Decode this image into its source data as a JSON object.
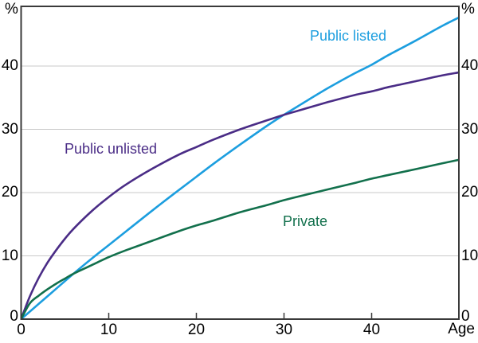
{
  "figure": {
    "unit_left": "%",
    "unit_right": "%",
    "x_axis_label": "Age"
  },
  "chart_data": {
    "type": "line",
    "title": "",
    "xlabel": "Age",
    "ylabel": "%",
    "xlim": [
      0,
      50
    ],
    "ylim": [
      0,
      50
    ],
    "x_ticks": [
      0,
      10,
      20,
      30,
      40
    ],
    "y_ticks": [
      0,
      10,
      20,
      30,
      40
    ],
    "grid": "horizontal",
    "legend_position": "inline-labels",
    "frame_color": "#3a3a3a",
    "gridline_color": "#c9c9c9",
    "series": [
      {
        "name": "Public listed",
        "color": "#1c9edf",
        "points": [
          [
            0,
            0
          ],
          [
            2,
            2.4
          ],
          [
            4,
            4.8
          ],
          [
            6,
            7.2
          ],
          [
            8,
            9.5
          ],
          [
            10,
            11.7
          ],
          [
            12,
            13.9
          ],
          [
            15,
            17.2
          ],
          [
            18,
            20.4
          ],
          [
            20,
            22.5
          ],
          [
            22,
            24.6
          ],
          [
            25,
            27.6
          ],
          [
            28,
            30.5
          ],
          [
            30,
            32.3
          ],
          [
            32,
            34.0
          ],
          [
            35,
            36.5
          ],
          [
            38,
            38.8
          ],
          [
            40,
            40.2
          ],
          [
            42,
            41.8
          ],
          [
            45,
            44.0
          ],
          [
            48,
            46.3
          ],
          [
            50,
            47.7
          ]
        ]
      },
      {
        "name": "Public unlisted",
        "color": "#4a2c86",
        "points": [
          [
            0,
            0
          ],
          [
            1,
            3.6
          ],
          [
            2,
            6.5
          ],
          [
            3,
            8.9
          ],
          [
            4,
            10.9
          ],
          [
            5,
            12.7
          ],
          [
            6,
            14.3
          ],
          [
            8,
            17.0
          ],
          [
            10,
            19.3
          ],
          [
            12,
            21.3
          ],
          [
            15,
            23.8
          ],
          [
            18,
            26.0
          ],
          [
            20,
            27.2
          ],
          [
            22,
            28.4
          ],
          [
            25,
            30.0
          ],
          [
            28,
            31.4
          ],
          [
            30,
            32.3
          ],
          [
            32,
            33.1
          ],
          [
            35,
            34.3
          ],
          [
            38,
            35.4
          ],
          [
            40,
            36.0
          ],
          [
            42,
            36.7
          ],
          [
            45,
            37.6
          ],
          [
            48,
            38.5
          ],
          [
            50,
            39.0
          ]
        ]
      },
      {
        "name": "Private",
        "color": "#12704c",
        "points": [
          [
            0,
            0
          ],
          [
            1,
            2.5
          ],
          [
            2,
            3.7
          ],
          [
            3,
            4.7
          ],
          [
            4,
            5.6
          ],
          [
            5,
            6.4
          ],
          [
            6,
            7.2
          ],
          [
            8,
            8.5
          ],
          [
            10,
            9.8
          ],
          [
            12,
            10.9
          ],
          [
            15,
            12.4
          ],
          [
            18,
            13.9
          ],
          [
            20,
            14.8
          ],
          [
            22,
            15.6
          ],
          [
            25,
            16.9
          ],
          [
            28,
            18.0
          ],
          [
            30,
            18.8
          ],
          [
            32,
            19.5
          ],
          [
            35,
            20.5
          ],
          [
            38,
            21.5
          ],
          [
            40,
            22.2
          ],
          [
            42,
            22.8
          ],
          [
            45,
            23.7
          ],
          [
            48,
            24.6
          ],
          [
            50,
            25.2
          ]
        ]
      }
    ]
  }
}
